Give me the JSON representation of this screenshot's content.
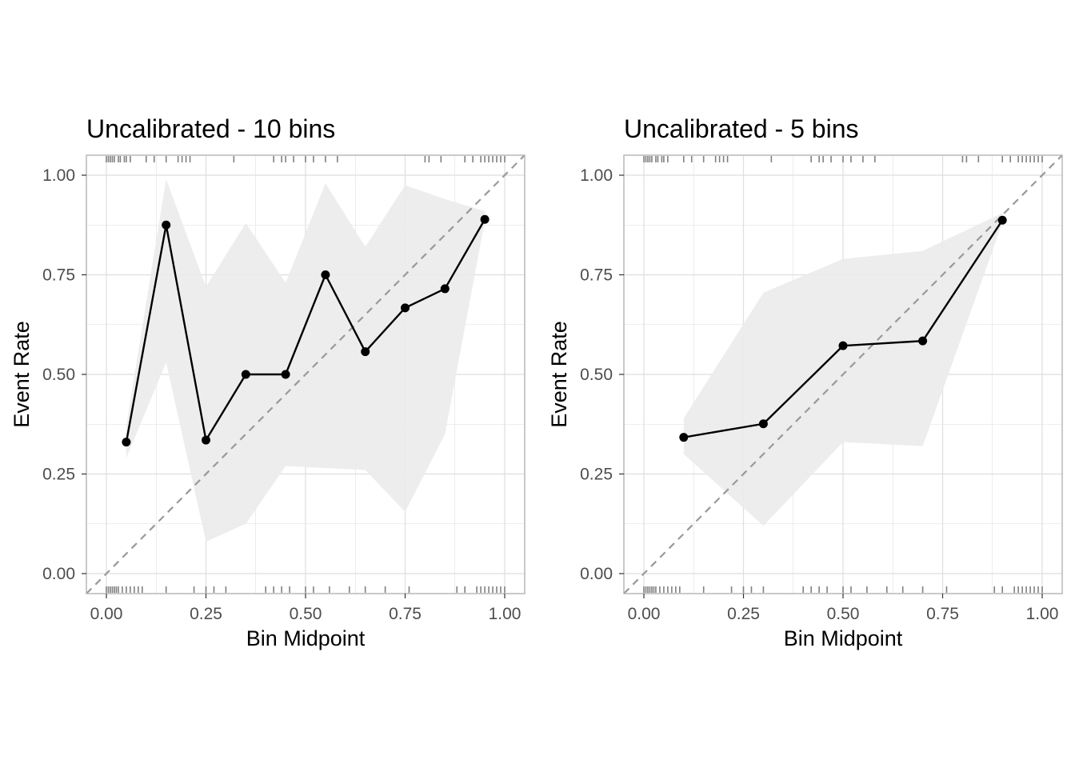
{
  "chart_data": [
    {
      "type": "line",
      "title": "Uncalibrated - 10 bins",
      "xlabel": "Bin Midpoint",
      "ylabel": "Event Rate",
      "xlim": [
        0,
        1
      ],
      "ylim": [
        0,
        1
      ],
      "x_ticks": [
        0,
        0.25,
        0.5,
        0.75,
        1
      ],
      "x_tick_labels": [
        "0.00",
        "0.25",
        "0.50",
        "0.75",
        "1.00"
      ],
      "y_ticks": [
        0,
        0.25,
        0.5,
        0.75,
        1
      ],
      "y_tick_labels": [
        "0.00",
        "0.25",
        "0.50",
        "0.75",
        "1.00"
      ],
      "grid": true,
      "reference_line": "y = x (dashed)",
      "points": {
        "x": [
          0.05,
          0.15,
          0.25,
          0.35,
          0.45,
          0.55,
          0.65,
          0.75,
          0.85,
          0.95
        ],
        "y": [
          0.33,
          0.875,
          0.335,
          0.5,
          0.5,
          0.75,
          0.557,
          0.667,
          0.715,
          0.889
        ]
      },
      "confidence_band": {
        "x": [
          0.05,
          0.15,
          0.25,
          0.35,
          0.45,
          0.55,
          0.65,
          0.75,
          0.85,
          0.95
        ],
        "lower": [
          0.29,
          0.53,
          0.08,
          0.125,
          0.27,
          0.265,
          0.26,
          0.155,
          0.35,
          0.885
        ],
        "upper": [
          0.37,
          0.99,
          0.72,
          0.88,
          0.73,
          0.98,
          0.82,
          0.975,
          0.94,
          0.91
        ]
      },
      "rug_top": [
        0.0,
        0.005,
        0.01,
        0.015,
        0.02,
        0.03,
        0.035,
        0.045,
        0.05,
        0.06,
        0.1,
        0.12,
        0.15,
        0.18,
        0.19,
        0.2,
        0.21,
        0.32,
        0.42,
        0.44,
        0.45,
        0.47,
        0.5,
        0.52,
        0.55,
        0.58,
        0.8,
        0.81,
        0.84,
        0.9,
        0.92,
        0.94,
        0.95,
        0.96,
        0.97,
        0.98,
        0.99,
        1.0
      ],
      "rug_bottom": [
        0.0,
        0.005,
        0.01,
        0.015,
        0.02,
        0.025,
        0.03,
        0.04,
        0.05,
        0.06,
        0.07,
        0.08,
        0.09,
        0.15,
        0.22,
        0.25,
        0.27,
        0.3,
        0.4,
        0.42,
        0.44,
        0.46,
        0.5,
        0.52,
        0.56,
        0.61,
        0.65,
        0.7,
        0.76,
        0.88,
        0.9,
        0.93,
        0.94,
        0.95,
        0.96,
        0.97,
        0.98,
        0.99,
        1.0
      ]
    },
    {
      "type": "line",
      "title": "Uncalibrated - 5 bins",
      "xlabel": "Bin Midpoint",
      "ylabel": "Event Rate",
      "xlim": [
        0,
        1
      ],
      "ylim": [
        0,
        1
      ],
      "x_ticks": [
        0,
        0.25,
        0.5,
        0.75,
        1
      ],
      "x_tick_labels": [
        "0.00",
        "0.25",
        "0.50",
        "0.75",
        "1.00"
      ],
      "y_ticks": [
        0,
        0.25,
        0.5,
        0.75,
        1
      ],
      "y_tick_labels": [
        "0.00",
        "0.25",
        "0.50",
        "0.75",
        "1.00"
      ],
      "grid": true,
      "reference_line": "y = x (dashed)",
      "points": {
        "x": [
          0.1,
          0.3,
          0.5,
          0.7,
          0.9
        ],
        "y": [
          0.342,
          0.376,
          0.572,
          0.584,
          0.887
        ]
      },
      "confidence_band": {
        "x": [
          0.1,
          0.3,
          0.5,
          0.7,
          0.9
        ],
        "lower": [
          0.3,
          0.12,
          0.33,
          0.32,
          0.88
        ],
        "upper": [
          0.39,
          0.705,
          0.79,
          0.81,
          0.905
        ]
      },
      "rug_top": [
        0.0,
        0.005,
        0.01,
        0.015,
        0.02,
        0.03,
        0.035,
        0.045,
        0.05,
        0.06,
        0.1,
        0.12,
        0.15,
        0.18,
        0.19,
        0.2,
        0.21,
        0.32,
        0.42,
        0.44,
        0.45,
        0.47,
        0.5,
        0.52,
        0.55,
        0.58,
        0.8,
        0.81,
        0.84,
        0.9,
        0.92,
        0.94,
        0.95,
        0.96,
        0.97,
        0.98,
        0.99,
        1.0
      ],
      "rug_bottom": [
        0.0,
        0.005,
        0.01,
        0.015,
        0.02,
        0.025,
        0.03,
        0.04,
        0.05,
        0.06,
        0.07,
        0.08,
        0.09,
        0.15,
        0.22,
        0.25,
        0.27,
        0.3,
        0.4,
        0.42,
        0.44,
        0.46,
        0.5,
        0.52,
        0.56,
        0.61,
        0.65,
        0.7,
        0.76,
        0.88,
        0.9,
        0.93,
        0.94,
        0.95,
        0.96,
        0.97,
        0.98,
        0.99,
        1.0
      ]
    }
  ],
  "colors": {
    "line": "#000000",
    "band": "#ebebeb",
    "grid": "#dedede",
    "panel_border": "#b3b3b3",
    "reference": "#999999",
    "rug": "#808080"
  }
}
